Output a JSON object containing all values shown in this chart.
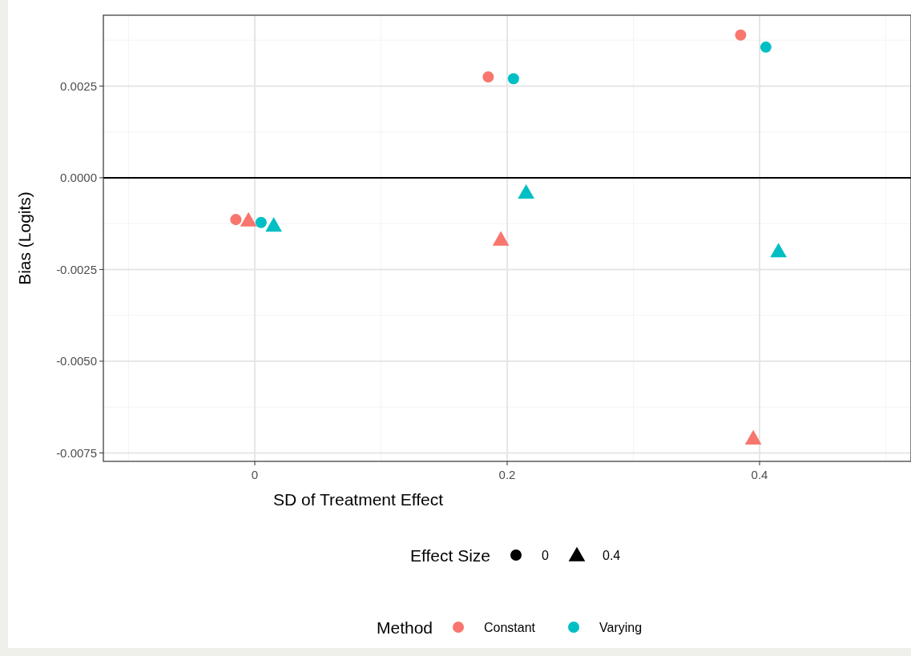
{
  "chart_data": {
    "type": "scatter",
    "xlabel": "SD of Treatment Effect",
    "ylabel": "Bias (Logits)",
    "xlim": [
      -0.12,
      0.52
    ],
    "ylim": [
      -0.00773,
      0.00443
    ],
    "xticks": [
      0,
      0.2,
      0.4
    ],
    "yticks": [
      {
        "value": -0.0075,
        "label": "-0.0075"
      },
      {
        "value": -0.005,
        "label": "-0.0050"
      },
      {
        "value": -0.0025,
        "label": "-0.0025"
      },
      {
        "value": 0,
        "label": "0.0000"
      },
      {
        "value": 0.0025,
        "label": "0.0025"
      }
    ],
    "grid": true,
    "legend": "bottom",
    "legend_title": "Method",
    "annotations": [
      "Effect Size",
      "0",
      "0.4"
    ],
    "ref_lines": [
      {
        "axis": "y",
        "value": 0,
        "color": "#000000"
      }
    ],
    "series": [
      {
        "name": "Constant",
        "color": "#f8766d",
        "marker": "circle",
        "x": [
          -0.015,
          0.185,
          0.385
        ],
        "values": [
          -0.00114,
          0.00275,
          0.00389
        ]
      },
      {
        "color": "#f8766d",
        "marker": "triangle",
        "x": [
          -0.005,
          0.195,
          0.395
        ],
        "values": [
          -0.00116,
          -0.00168,
          -0.0071
        ]
      },
      {
        "name": "Varying",
        "color": "#00bfc4",
        "marker": "circle",
        "x": [
          0.005,
          0.205,
          0.405
        ],
        "values": [
          -0.00122,
          0.0027,
          0.00356
        ]
      },
      {
        "color": "#00bfc4",
        "marker": "triangle",
        "x": [
          0.015,
          0.215,
          0.415
        ],
        "values": [
          -0.0013,
          -0.0004,
          -0.002
        ]
      }
    ]
  }
}
